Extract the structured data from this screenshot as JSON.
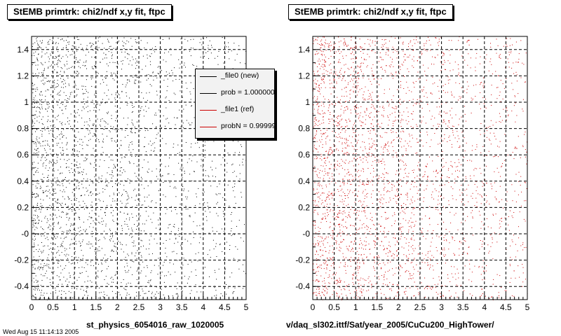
{
  "canvas_footer": "Wed Aug 15 11:14:13 2005",
  "chart_data": [
    {
      "type": "scatter",
      "title": "StEMB primtrk: chi2/ndf x,y fit, ftpc",
      "xlabel": "st_physics_6054016_raw_1020005",
      "ylabel": "",
      "xlim": [
        0,
        5
      ],
      "ylim": [
        -0.5,
        1.5
      ],
      "x_ticks": [
        "0",
        "0.5",
        "1",
        "1.5",
        "2",
        "2.5",
        "3",
        "3.5",
        "4",
        "4.5",
        "5"
      ],
      "y_ticks": [
        "-0.4",
        "-0.2",
        "-0",
        "0.2",
        "0.4",
        "0.6",
        "0.8",
        "1",
        "1.2",
        "1.4"
      ],
      "grid": true,
      "marker_color": "#000000",
      "point_count": 2600,
      "density": "concentrated at low x (0–2.5), sparser toward x=5, roughly uniform in y",
      "legend": {
        "placement": "top-right",
        "entries": [
          {
            "label": "_file0 (new)",
            "color": "#000000"
          },
          {
            "label": "prob = 1.000000",
            "color": "#000000"
          },
          {
            "label": "_file1 (ref)",
            "color": "#cc0000"
          },
          {
            "label": "probN = 0.999999",
            "color": "#cc0000"
          }
        ]
      }
    },
    {
      "type": "scatter",
      "title": "StEMB primtrk: chi2/ndf x,y fit, ftpc",
      "xlabel": "v/daq_sl302.ittf/Sat/year_2005/CuCu200_HighTower/",
      "ylabel": "",
      "xlim": [
        0,
        5
      ],
      "ylim": [
        -0.5,
        1.5
      ],
      "x_ticks": [
        "0",
        "0.5",
        "1",
        "1.5",
        "2",
        "2.5",
        "3",
        "3.5",
        "4",
        "4.5",
        "5"
      ],
      "y_ticks": [
        "-0.4",
        "-0.2",
        "-0",
        "0.2",
        "0.4",
        "0.6",
        "0.8",
        "1",
        "1.2",
        "1.4"
      ],
      "grid": true,
      "marker_color": "#cc0000",
      "point_count": 3000,
      "density": "concentrated at low x (0–2.5), sparser toward x=5, roughly uniform in y"
    }
  ]
}
